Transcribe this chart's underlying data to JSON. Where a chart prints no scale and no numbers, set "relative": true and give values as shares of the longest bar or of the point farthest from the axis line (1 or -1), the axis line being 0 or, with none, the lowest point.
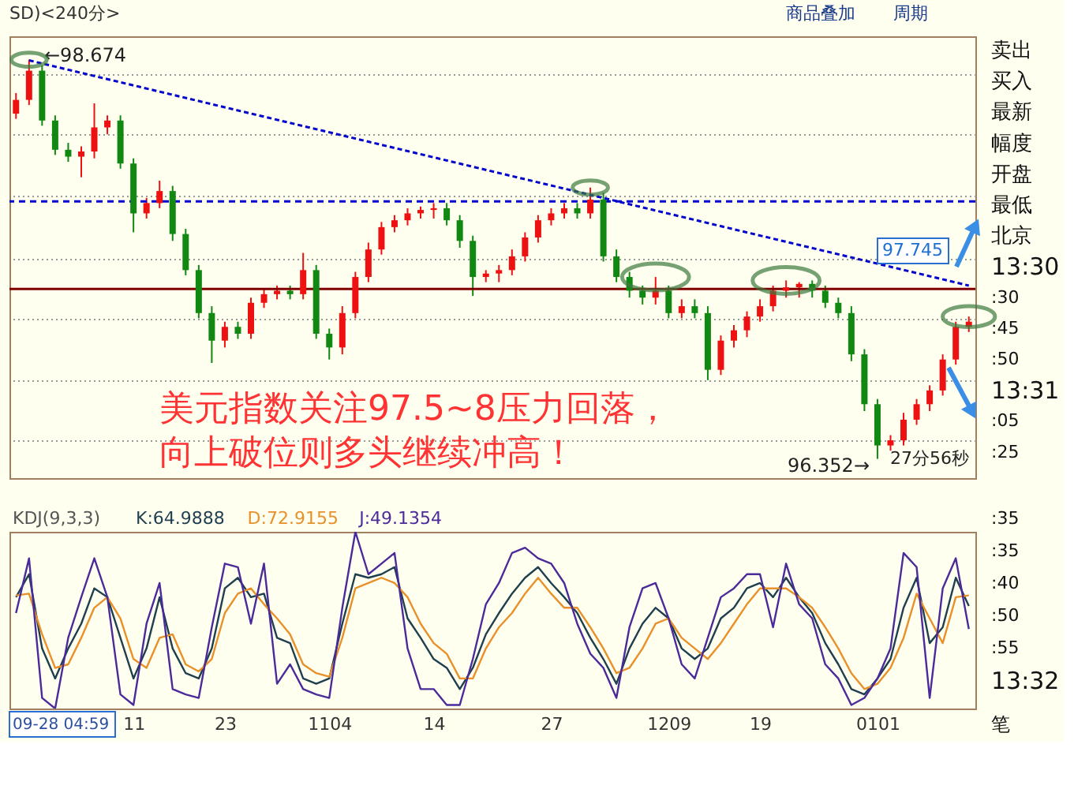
{
  "chart_data": [
    {
      "type": "candlestick",
      "categories": [
        null,
        null,
        null,
        null,
        null,
        null,
        null,
        null,
        null,
        "11",
        null,
        null,
        null,
        null,
        null,
        null,
        "23",
        null,
        null,
        null,
        null,
        null,
        null,
        null,
        "1104",
        null,
        null,
        null,
        null,
        null,
        null,
        null,
        "14",
        null,
        null,
        null,
        null,
        null,
        null,
        null,
        null,
        "27",
        null,
        null,
        null,
        null,
        null,
        null,
        null,
        null,
        "1209",
        null,
        null,
        null,
        null,
        null,
        null,
        "19",
        null,
        null,
        null,
        null,
        null,
        null,
        null,
        null,
        "0101",
        null,
        null,
        null,
        null,
        null,
        null,
        null
      ],
      "ohlc": [
        [
          98.36,
          98.48,
          98.33,
          98.44
        ],
        [
          98.44,
          98.674,
          98.41,
          98.61
        ],
        [
          98.61,
          98.64,
          98.29,
          98.32
        ],
        [
          98.32,
          98.35,
          98.12,
          98.15
        ],
        [
          98.15,
          98.19,
          98.08,
          98.11
        ],
        [
          98.11,
          98.17,
          97.99,
          98.14
        ],
        [
          98.14,
          98.42,
          98.1,
          98.28
        ],
        [
          98.28,
          98.35,
          98.24,
          98.32
        ],
        [
          98.32,
          98.35,
          98.04,
          98.07
        ],
        [
          98.07,
          98.1,
          97.67,
          97.78
        ],
        [
          97.78,
          97.87,
          97.75,
          97.84
        ],
        [
          97.84,
          97.97,
          97.81,
          97.91
        ],
        [
          97.91,
          97.94,
          97.62,
          97.66
        ],
        [
          97.66,
          97.69,
          97.42,
          97.45
        ],
        [
          97.45,
          97.48,
          97.17,
          97.2
        ],
        [
          97.2,
          97.24,
          96.91,
          97.04
        ],
        [
          97.04,
          97.15,
          97.0,
          97.12
        ],
        [
          97.12,
          97.15,
          97.05,
          97.08
        ],
        [
          97.08,
          97.29,
          97.05,
          97.26
        ],
        [
          97.26,
          97.34,
          97.23,
          97.31
        ],
        [
          97.31,
          97.36,
          97.28,
          97.33
        ],
        [
          97.33,
          97.36,
          97.28,
          97.31
        ],
        [
          97.31,
          97.55,
          97.28,
          97.45
        ],
        [
          97.45,
          97.48,
          97.05,
          97.08
        ],
        [
          97.08,
          97.11,
          96.93,
          97.0
        ],
        [
          97.0,
          97.24,
          96.96,
          97.2
        ],
        [
          97.2,
          97.44,
          97.17,
          97.41
        ],
        [
          97.41,
          97.61,
          97.38,
          97.57
        ],
        [
          97.57,
          97.73,
          97.54,
          97.7
        ],
        [
          97.7,
          97.77,
          97.67,
          97.74
        ],
        [
          97.74,
          97.81,
          97.71,
          97.78
        ],
        [
          97.78,
          97.82,
          97.75,
          97.8
        ],
        [
          97.8,
          97.84,
          97.75,
          97.81
        ],
        [
          97.81,
          97.84,
          97.71,
          97.74
        ],
        [
          97.74,
          97.77,
          97.58,
          97.62
        ],
        [
          97.62,
          97.65,
          97.3,
          97.41
        ],
        [
          97.41,
          97.45,
          97.38,
          97.43
        ],
        [
          97.43,
          97.48,
          97.38,
          97.45
        ],
        [
          97.45,
          97.57,
          97.42,
          97.53
        ],
        [
          97.53,
          97.67,
          97.5,
          97.64
        ],
        [
          97.64,
          97.77,
          97.61,
          97.74
        ],
        [
          97.74,
          97.81,
          97.71,
          97.78
        ],
        [
          97.78,
          97.84,
          97.75,
          97.81
        ],
        [
          97.81,
          97.84,
          97.75,
          97.78
        ],
        [
          97.78,
          97.93,
          97.75,
          97.86
        ],
        [
          97.86,
          97.9,
          97.5,
          97.53
        ],
        [
          97.53,
          97.57,
          97.38,
          97.41
        ],
        [
          97.41,
          97.44,
          97.29,
          97.33
        ],
        [
          97.33,
          97.36,
          97.25,
          97.29
        ],
        [
          97.29,
          97.41,
          97.25,
          97.33
        ],
        [
          97.33,
          97.36,
          97.17,
          97.2
        ],
        [
          97.2,
          97.28,
          97.17,
          97.24
        ],
        [
          97.24,
          97.28,
          97.17,
          97.2
        ],
        [
          97.2,
          97.24,
          96.81,
          96.87
        ],
        [
          96.87,
          97.07,
          96.84,
          97.04
        ],
        [
          97.04,
          97.13,
          97.0,
          97.1
        ],
        [
          97.1,
          97.21,
          97.06,
          97.18
        ],
        [
          97.18,
          97.28,
          97.15,
          97.24
        ],
        [
          97.24,
          97.36,
          97.21,
          97.33
        ],
        [
          97.33,
          97.39,
          97.29,
          97.35
        ],
        [
          97.35,
          97.38,
          97.29,
          97.37
        ],
        [
          97.37,
          97.39,
          97.29,
          97.33
        ],
        [
          97.33,
          97.36,
          97.23,
          97.26
        ],
        [
          97.26,
          97.29,
          97.17,
          97.2
        ],
        [
          97.2,
          97.24,
          96.92,
          96.96
        ],
        [
          96.96,
          96.99,
          96.63,
          96.67
        ],
        [
          96.67,
          96.7,
          96.352,
          96.43
        ],
        [
          96.43,
          96.49,
          96.4,
          96.46
        ],
        [
          96.46,
          96.62,
          96.43,
          96.58
        ],
        [
          96.58,
          96.7,
          96.55,
          96.67
        ],
        [
          96.67,
          96.78,
          96.63,
          96.75
        ],
        [
          96.75,
          96.96,
          96.72,
          96.93
        ],
        [
          96.93,
          97.15,
          96.9,
          97.12
        ],
        [
          97.12,
          97.18,
          97.09,
          97.15
        ]
      ],
      "series": [
        {
          "type": "line",
          "color": "#0000cc",
          "line_style": "dashed",
          "values": [
            null,
            98.67,
            null,
            null,
            null,
            null,
            null,
            null,
            null,
            null,
            null,
            null,
            null,
            null,
            null,
            null,
            null,
            null,
            null,
            null,
            null,
            null,
            null,
            null,
            null,
            null,
            null,
            null,
            null,
            null,
            null,
            null,
            null,
            null,
            null,
            null,
            null,
            null,
            null,
            null,
            null,
            null,
            null,
            null,
            null,
            null,
            null,
            null,
            null,
            null,
            null,
            null,
            null,
            null,
            null,
            null,
            null,
            null,
            null,
            null,
            null,
            null,
            null,
            null,
            null,
            null,
            null,
            null,
            null,
            null,
            null,
            null,
            null,
            97.36
          ]
        }
      ],
      "ylim": [
        96.24,
        98.81
      ],
      "yticks": [
        {
          "value": 96.46,
          "label": null
        },
        {
          "value": 96.81,
          "label": null
        },
        {
          "value": 97.17,
          "label": null
        },
        {
          "value": 97.52,
          "label": null
        },
        {
          "value": 97.88,
          "label": null
        },
        {
          "value": 98.24,
          "label": null
        },
        {
          "value": 98.59,
          "label": null
        }
      ],
      "grid": "y",
      "tick_labels": false,
      "ref_lines": [
        {
          "axis": "y",
          "value": 97.85,
          "color": "#0000cc",
          "line_style": "dashed"
        },
        {
          "axis": "y",
          "value": 97.34,
          "color": "#800000",
          "line_style": "solid"
        }
      ],
      "annotations": [
        "←98.674",
        "96.352→",
        "97.745",
        "美元指数关注97.5~8压力回落，",
        "向上破位则多头继续冲高！",
        "27分56秒",
        "SD)<240分>",
        "商品叠加",
        "周期",
        "卖出",
        "买入",
        "最新",
        "幅度",
        "开盘",
        "最低",
        "北京",
        "13:30",
        ":30",
        ":45",
        ":50",
        "13:31",
        ":05",
        ":25"
      ]
    },
    {
      "type": "line",
      "title": "KDJ(9,3,3)",
      "relative": true,
      "categories": [
        null,
        null,
        null,
        null,
        null,
        null,
        null,
        null,
        null,
        "11",
        null,
        null,
        null,
        null,
        null,
        null,
        "23",
        null,
        null,
        null,
        null,
        null,
        null,
        null,
        "1104",
        null,
        null,
        null,
        null,
        null,
        null,
        null,
        "14",
        null,
        null,
        null,
        null,
        null,
        null,
        null,
        null,
        "27",
        null,
        null,
        null,
        null,
        null,
        null,
        null,
        null,
        "1209",
        null,
        null,
        null,
        null,
        null,
        null,
        "19",
        null,
        null,
        null,
        null,
        null,
        null,
        null,
        null,
        "0101",
        null,
        null,
        null,
        null,
        null,
        null,
        null
      ],
      "series": [
        {
          "name": "K:64.9888",
          "color": "#1f3f4f",
          "values": [
            0.63,
            0.76,
            0.34,
            0.17,
            0.34,
            0.48,
            0.68,
            0.63,
            0.4,
            0.17,
            0.34,
            0.63,
            0.34,
            0.2,
            0.17,
            0.34,
            0.68,
            0.74,
            0.63,
            0.65,
            0.4,
            0.37,
            0.17,
            0.14,
            0.17,
            0.48,
            0.76,
            0.74,
            0.76,
            0.8,
            0.51,
            0.4,
            0.28,
            0.23,
            0.11,
            0.23,
            0.42,
            0.54,
            0.65,
            0.74,
            0.8,
            0.71,
            0.63,
            0.54,
            0.4,
            0.28,
            0.14,
            0.34,
            0.48,
            0.57,
            0.51,
            0.34,
            0.28,
            0.34,
            0.51,
            0.57,
            0.68,
            0.71,
            0.63,
            0.74,
            0.63,
            0.54,
            0.37,
            0.25,
            0.11,
            0.08,
            0.17,
            0.28,
            0.57,
            0.74,
            0.37,
            0.46,
            0.74,
            0.58
          ]
        },
        {
          "name": "D:72.9155",
          "color": "#e8902a",
          "values": [
            0.64,
            0.65,
            0.42,
            0.23,
            0.25,
            0.4,
            0.57,
            0.63,
            0.51,
            0.28,
            0.23,
            0.4,
            0.42,
            0.25,
            0.21,
            0.28,
            0.54,
            0.65,
            0.68,
            0.59,
            0.51,
            0.42,
            0.25,
            0.2,
            0.18,
            0.4,
            0.68,
            0.71,
            0.74,
            0.71,
            0.63,
            0.48,
            0.37,
            0.31,
            0.17,
            0.17,
            0.34,
            0.46,
            0.54,
            0.65,
            0.74,
            0.65,
            0.57,
            0.57,
            0.46,
            0.34,
            0.2,
            0.23,
            0.34,
            0.48,
            0.51,
            0.4,
            0.34,
            0.28,
            0.37,
            0.48,
            0.59,
            0.68,
            0.68,
            0.68,
            0.63,
            0.57,
            0.46,
            0.34,
            0.2,
            0.11,
            0.14,
            0.23,
            0.4,
            0.65,
            0.51,
            0.37,
            0.63,
            0.64
          ]
        },
        {
          "name": "J:49.1354",
          "color": "#4b2a9a",
          "values": [
            0.54,
            0.85,
            0.06,
            0,
            0.4,
            0.63,
            0.85,
            0.63,
            0.08,
            0.02,
            0.48,
            0.71,
            0.11,
            0.08,
            0.06,
            0.46,
            0.82,
            0.8,
            0.48,
            0.82,
            0.14,
            0.25,
            0.11,
            0.08,
            0.06,
            0.57,
            1,
            0.76,
            0.82,
            0.88,
            0.34,
            0.11,
            0.11,
            0.02,
            0.02,
            0.28,
            0.59,
            0.71,
            0.88,
            0.91,
            0.85,
            0.82,
            0.71,
            0.48,
            0.31,
            0.23,
            0.06,
            0.46,
            0.68,
            0.71,
            0.51,
            0.25,
            0.17,
            0.4,
            0.63,
            0.68,
            0.76,
            0.76,
            0.46,
            0.82,
            0.59,
            0.51,
            0.25,
            0.17,
            0.02,
            0.06,
            0.17,
            0.34,
            0.88,
            0.8,
            0.06,
            0.68,
            0.85,
            0.45
          ]
        }
      ],
      "tick_labels": "x",
      "legend": "top left",
      "marker": "none",
      "annotations": [
        "09-28 04:59",
        ":35",
        ":35",
        ":40",
        ":50",
        ":55",
        "13:32",
        "笔"
      ]
    }
  ]
}
